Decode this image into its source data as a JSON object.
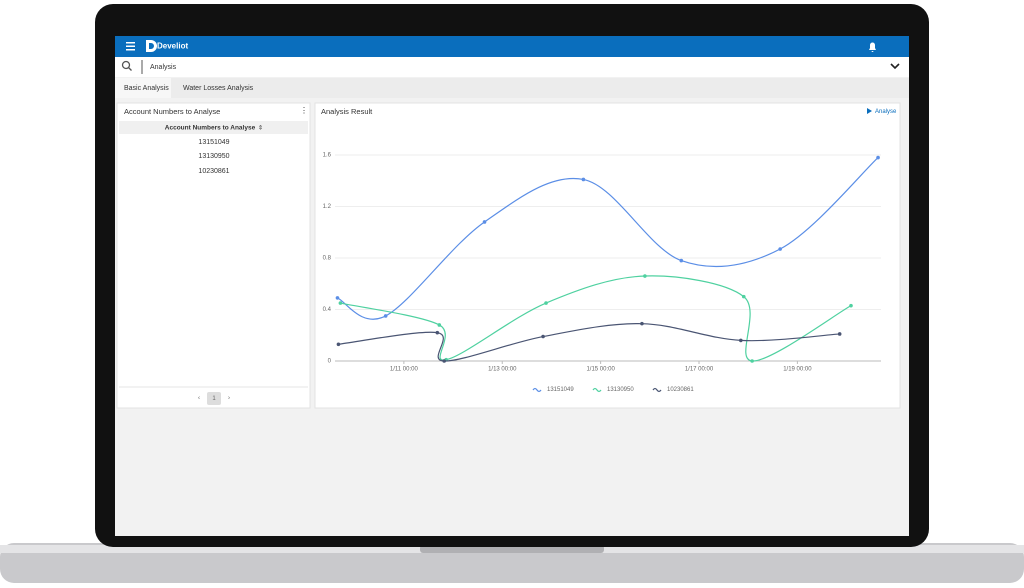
{
  "app": {
    "brand": "Develiot",
    "search": "Analysis",
    "tabs": [
      "Basic Analysis",
      "Water Losses Analysis"
    ]
  },
  "left_panel": {
    "title": "Account Numbers to Analyse",
    "column": "Account Numbers to Analyse",
    "rows": [
      "13151049",
      "13130950",
      "10230861"
    ],
    "page": "1"
  },
  "right_panel": {
    "title": "Analysis Result",
    "action": "Analyse"
  },
  "chart_data": {
    "type": "line",
    "xlim": [
      9.6,
      20.7
    ],
    "ylim": [
      0,
      1.6
    ],
    "xticks": [
      {
        "value": 11,
        "label": "1/11 00:00"
      },
      {
        "value": 13,
        "label": "1/13 00:00"
      },
      {
        "value": 15,
        "label": "1/15 00:00"
      },
      {
        "value": 17,
        "label": "1/17 00:00"
      },
      {
        "value": 19,
        "label": "1/19 00:00"
      }
    ],
    "yticks": [
      0,
      0.4,
      0.8,
      1.2,
      1.6
    ],
    "grid": true,
    "series": [
      {
        "name": "13151049",
        "color": "#5b8ee6",
        "x": [
          9.65,
          10.63,
          12.64,
          14.65,
          16.64,
          18.65,
          20.64
        ],
        "values": [
          0.49,
          0.35,
          1.08,
          1.41,
          0.78,
          0.87,
          1.58
        ]
      },
      {
        "name": "13130950",
        "color": "#4fd1a0",
        "x": [
          9.71,
          11.72,
          11.86,
          13.89,
          15.9,
          17.91,
          18.08,
          20.09
        ],
        "values": [
          0.45,
          0.28,
          0.01,
          0.45,
          0.66,
          0.5,
          0,
          0.43
        ]
      },
      {
        "name": "10230861",
        "color": "#4a5573",
        "x": [
          9.67,
          11.68,
          11.82,
          13.83,
          15.84,
          17.85,
          19.86
        ],
        "values": [
          0.13,
          0.22,
          0,
          0.19,
          0.29,
          0.16,
          0.21
        ]
      }
    ]
  }
}
